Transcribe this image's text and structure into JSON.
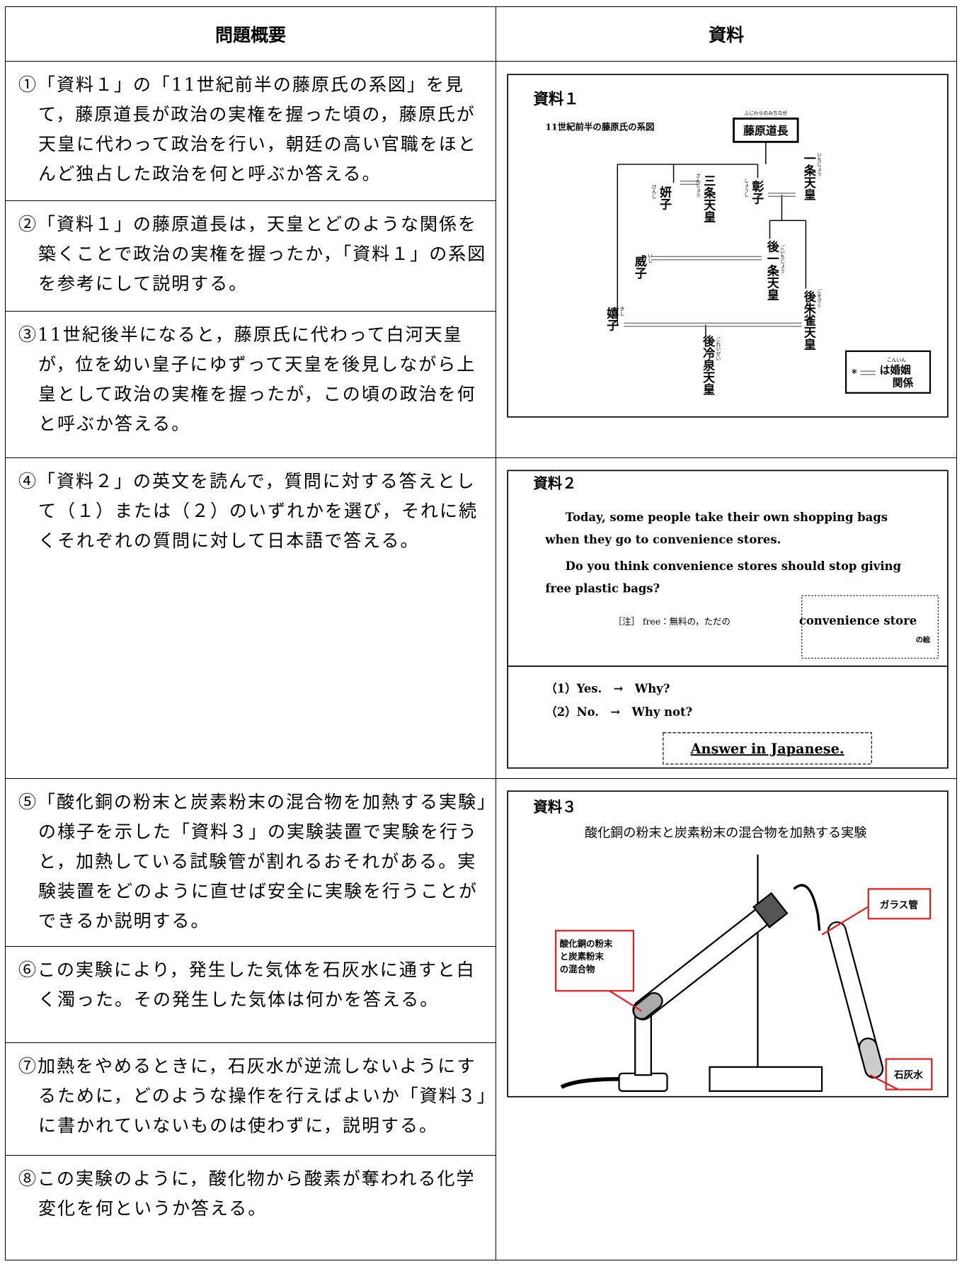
{
  "table": {
    "headers": [
      "問題概要",
      "資料"
    ],
    "questions": [
      "①「資料１」の「11世紀前半の藤原氏の系図」を見て，藤原道長が政治の実権を握った頃の，藤原氏が天皇に代わって政治を行い，朝廷の高い官職をほとんど独占した政治を何と呼ぶか答える。",
      "②「資料１」の藤原道長は，天皇とどのような関係を築くことで政治の実権を握ったか，「資料１」の系図を参考にして説明する。",
      "③11世紀後半になると，藤原氏に代わって白河天皇が，位を幼い皇子にゆずって天皇を後見しながら上皇として政治の実権を握ったが，この頃の政治を何と呼ぶか答える。",
      "④「資料２」の英文を読んで，質問に対する答えとして（１）または（２）のいずれかを選び，それに続くそれぞれの質問に対して日本語で答える。",
      "⑤「酸化銅の粉末と炭素粉末の混合物を加熱する実験」の様子を示した「資料３」の実験装置で実験を行うと，加熱している試験管が割れるおそれがある。実験装置をどのように直せば安全に実験を行うことができるか説明する。",
      "⑥この実験により，発生した気体を石灰水に通すと白く濁った。その発生した気体は何かを答える。",
      "⑦加熱をやめるときに，石灰水が逆流しないようにするために，どのような操作を行えばよいか「資料３」に書かれていないものは使わずに，説明する。",
      "⑧この実験のように，酸化物から酸素が奪われる化学変化を何というか答える。"
    ],
    "material1": {
      "title": "資料１",
      "subtitle": "11世紀前半の藤原氏の系図",
      "people": [
        {
          "name": "藤原道長",
          "reading": "ふじわらのみちなが"
        },
        {
          "name": "一条天皇",
          "reading": "いちじょう"
        },
        {
          "name": "三条天皇",
          "reading": "さんじょう"
        },
        {
          "name": "彰子",
          "reading": "しょうし"
        },
        {
          "name": "妍子",
          "reading": "けんし"
        },
        {
          "name": "後一条天皇",
          "reading": "ごいちじょう"
        },
        {
          "name": "威子",
          "reading": "いし"
        },
        {
          "name": "後朱雀天皇",
          "reading": "ごすざく"
        },
        {
          "name": "嬉子",
          "reading": "きし"
        },
        {
          "name": "後冷泉天皇",
          "reading": "ごれいぜい"
        }
      ],
      "legend_mark": "*",
      "legend": [
        "は婚姻",
        "関係"
      ],
      "legend_reading": "こんいん"
    },
    "material2": {
      "title": "資料２",
      "paragraphs": [
        [
          "Today, some people take their own shopping bags",
          "when they go to convenience stores."
        ],
        [
          "Do you think convenience stores should stop giving",
          "free plastic bags?"
        ]
      ],
      "note": "［注］ free：無料の，ただの",
      "picture_note": [
        "convenience store",
        "の絵"
      ],
      "options": [
        "（1）Yes.　→　Why?",
        "（2）No.　→　Why not?"
      ],
      "instruction": "Answer in Japanese."
    },
    "material3": {
      "title": "資料３",
      "caption": "酸化銅の粉末と炭素粉末の混合物を加熱する実験",
      "label_mixture": [
        "酸化銅の粉末",
        "と炭素粉末",
        "の混合物"
      ],
      "label_tube": "ガラス管",
      "label_limewater": "石灰水"
    }
  }
}
